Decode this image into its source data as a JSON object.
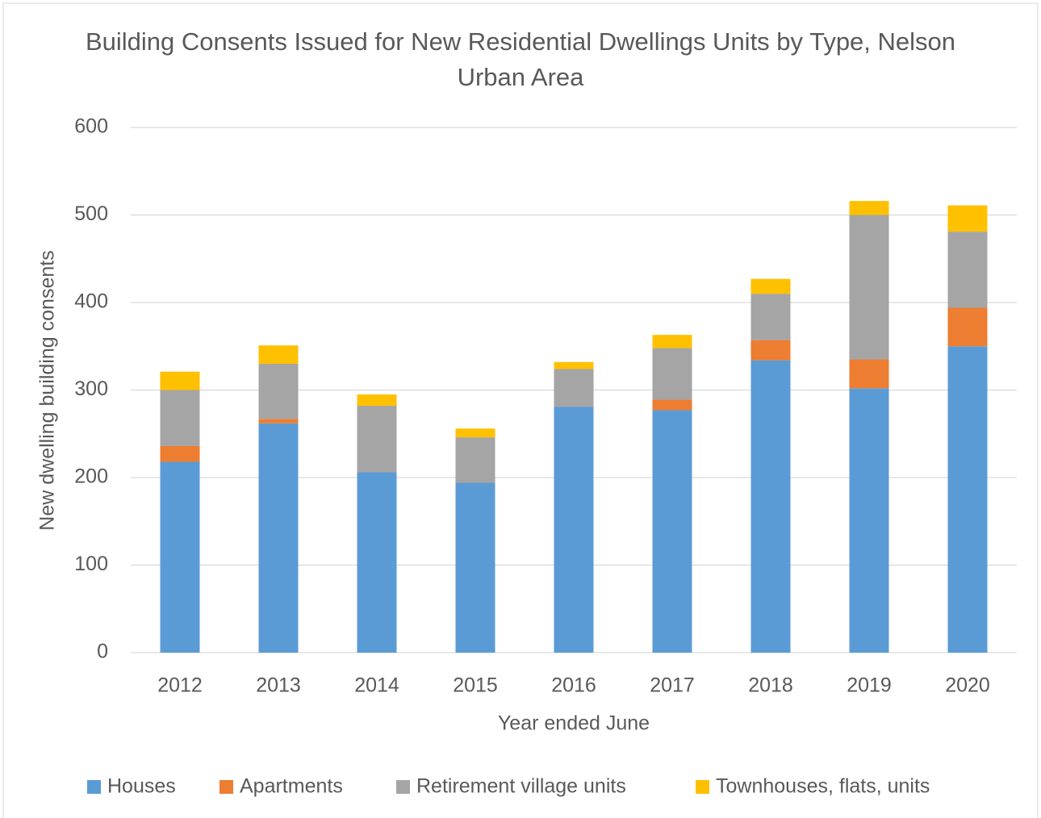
{
  "chart_data": {
    "type": "stacked_bar",
    "title": "Building Consents Issued for New Residential Dwellings Units by Type, Nelson Urban Area",
    "x_label": "Year ended June",
    "y_label": "New dwelling building consents",
    "categories": [
      "2012",
      "2013",
      "2014",
      "2015",
      "2016",
      "2017",
      "2018",
      "2019",
      "2020"
    ],
    "series": [
      {
        "name": "Houses",
        "color": "#5b9bd5",
        "values": [
          218,
          262,
          206,
          194,
          281,
          277,
          334,
          302,
          350
        ]
      },
      {
        "name": "Apartments",
        "color": "#ed7d31",
        "values": [
          18,
          5,
          0,
          0,
          0,
          12,
          23,
          33,
          44
        ]
      },
      {
        "name": "Retirement village units",
        "color": "#a5a5a5",
        "values": [
          64,
          63,
          76,
          52,
          43,
          59,
          53,
          165,
          87
        ]
      },
      {
        "name": "Townhouses, flats, units",
        "color": "#ffc000",
        "values": [
          21,
          21,
          13,
          10,
          8,
          15,
          17,
          16,
          30
        ]
      }
    ],
    "ylim": [
      0,
      600
    ],
    "yticks": [
      0,
      100,
      200,
      300,
      400,
      500,
      600
    ],
    "grid": true,
    "legend": "bottom"
  }
}
